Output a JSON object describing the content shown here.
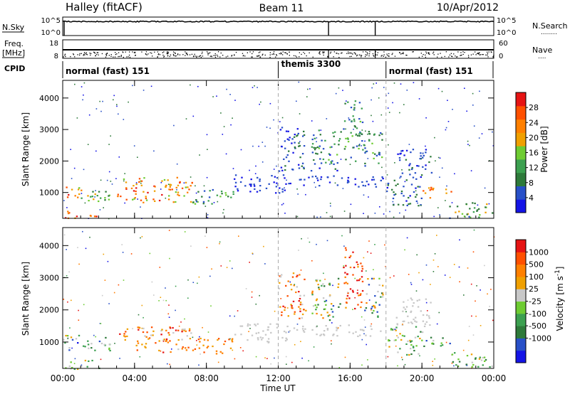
{
  "header": {
    "site": "Halley (fitACF)",
    "beam": "Beam 11",
    "date": "10/Apr/2012"
  },
  "left_labels": {
    "nsky": "N.Sky",
    "freq_top": "Freq.",
    "freq_bottom": "[MHz]",
    "cpid": "CPID"
  },
  "right_labels": {
    "nsearch": "N.Search",
    "nave": "Nave",
    "nsearch_legend": "........",
    "nave_legend": "...."
  },
  "strip_ticks": {
    "noise_left": [
      "10^5",
      "10^0"
    ],
    "noise_right": [
      "10^5",
      "10^0"
    ],
    "freq_left": [
      "18",
      "8"
    ],
    "nave_right": [
      "60",
      "0"
    ]
  },
  "cpid_segments": [
    {
      "label": "normal (fast) 151",
      "start_hour": 0
    },
    {
      "label": "themis 3300",
      "start_hour": 12
    },
    {
      "label": "normal (fast) 151",
      "start_hour": 18
    }
  ],
  "chart_data": [
    {
      "type": "heatmap",
      "parameter": "Power",
      "xlabel": "",
      "ylabel": "Slant Range [km]",
      "x_tick_labels": [
        "00:00",
        "04:00",
        "08:00",
        "12:00",
        "16:00",
        "20:00",
        "00:00"
      ],
      "x_ticks_hours": [
        0,
        4,
        8,
        12,
        16,
        20,
        24
      ],
      "xlim_hours": [
        0,
        24
      ],
      "y_ticks": [
        1000,
        2000,
        3000,
        4000
      ],
      "ylim": [
        180,
        4560
      ],
      "colorbar": {
        "label": "Power [dB]",
        "ticks": [
          "4",
          "8",
          "12",
          "16",
          "20",
          "24",
          "28"
        ],
        "range": [
          0,
          32
        ],
        "colors": [
          "#1414e6",
          "#2850c8",
          "#2e7a3a",
          "#3ca050",
          "#6ecc32",
          "#f0a000",
          "#ff8000",
          "#ff5000",
          "#e61414"
        ]
      },
      "dashed_lines_hours": [
        12,
        18
      ],
      "features": [
        {
          "t0": 0.0,
          "t1": 1.0,
          "r0": 780,
          "r1": 1240,
          "value": 22,
          "spread": 8
        },
        {
          "t0": 1.0,
          "t1": 2.6,
          "r0": 700,
          "r1": 1200,
          "value": 14,
          "spread": 7
        },
        {
          "t0": 3.0,
          "t1": 7.2,
          "r0": 700,
          "r1": 1500,
          "value": 22,
          "spread": 8
        },
        {
          "t0": 7.2,
          "t1": 9.5,
          "r0": 650,
          "r1": 1150,
          "value": 11,
          "spread": 5
        },
        {
          "t0": 9.5,
          "t1": 12.5,
          "r0": 1000,
          "r1": 1600,
          "value": 4,
          "spread": 3
        },
        {
          "t0": 12.5,
          "t1": 17.8,
          "r0": 1200,
          "r1": 1550,
          "value": 4,
          "spread": 3
        },
        {
          "t0": 12.0,
          "t1": 13.5,
          "r0": 1700,
          "r1": 3200,
          "value": 6,
          "spread": 4
        },
        {
          "t0": 13.8,
          "t1": 15.5,
          "r0": 1700,
          "r1": 3000,
          "value": 9,
          "spread": 6
        },
        {
          "t0": 15.6,
          "t1": 16.7,
          "r0": 2000,
          "r1": 4000,
          "value": 11,
          "spread": 6
        },
        {
          "t0": 16.7,
          "t1": 17.8,
          "r0": 1800,
          "r1": 3000,
          "value": 10,
          "spread": 5
        },
        {
          "t0": 18.0,
          "t1": 20.0,
          "r0": 600,
          "r1": 1500,
          "value": 7,
          "spread": 4
        },
        {
          "t0": 18.5,
          "t1": 20.5,
          "r0": 1500,
          "r1": 2400,
          "value": 5,
          "spread": 3
        },
        {
          "t0": 20.0,
          "t1": 21.6,
          "r0": 850,
          "r1": 1200,
          "value": 24,
          "spread": 6
        },
        {
          "t0": 21.5,
          "t1": 24.0,
          "r0": 200,
          "r1": 700,
          "value": 12,
          "spread": 8
        },
        {
          "t0": 0.0,
          "t1": 2.0,
          "r0": 180,
          "r1": 450,
          "value": 26,
          "spread": 5
        }
      ]
    },
    {
      "type": "heatmap",
      "parameter": "Velocity",
      "xlabel": "Time UT",
      "ylabel": "Slant Range [km]",
      "x_tick_labels": [
        "00:00",
        "04:00",
        "08:00",
        "12:00",
        "16:00",
        "20:00",
        "00:00"
      ],
      "x_ticks_hours": [
        0,
        4,
        8,
        12,
        16,
        20,
        24
      ],
      "xlim_hours": [
        0,
        24
      ],
      "y_ticks": [
        1000,
        2000,
        3000,
        4000
      ],
      "ylim": [
        180,
        4560
      ],
      "colorbar": {
        "label": "Velocity [m s^-1]",
        "ticks": [
          "1000",
          "500",
          "100",
          "25",
          "-25",
          "-100",
          "-500",
          "-1000"
        ],
        "colors": [
          "#1414e6",
          "#2850c8",
          "#2e7a3a",
          "#3ca050",
          "#6ecc32",
          "#c8c8c8",
          "#f0a000",
          "#ff8000",
          "#ff5000",
          "#e61414"
        ]
      },
      "dashed_lines_hours": [
        12,
        18
      ],
      "features": [
        {
          "t0": 0.0,
          "t1": 1.0,
          "r0": 700,
          "r1": 1240,
          "value": 3,
          "spread": 3
        },
        {
          "t0": 1.0,
          "t1": 2.6,
          "r0": 700,
          "r1": 1200,
          "value": 3,
          "spread": 2
        },
        {
          "t0": 3.0,
          "t1": 7.2,
          "r0": 700,
          "r1": 1500,
          "value": 7,
          "spread": 2
        },
        {
          "t0": 7.2,
          "t1": 9.5,
          "r0": 650,
          "r1": 1150,
          "value": 7,
          "spread": 1
        },
        {
          "t0": 9.5,
          "t1": 12.5,
          "r0": 1000,
          "r1": 1600,
          "value": 5,
          "spread": 0
        },
        {
          "t0": 12.5,
          "t1": 17.8,
          "r0": 1200,
          "r1": 1550,
          "value": 5,
          "spread": 0
        },
        {
          "t0": 12.0,
          "t1": 13.5,
          "r0": 1700,
          "r1": 3200,
          "value": 7,
          "spread": 2
        },
        {
          "t0": 13.8,
          "t1": 15.5,
          "r0": 1700,
          "r1": 3000,
          "value": 4,
          "spread": 3
        },
        {
          "t0": 15.6,
          "t1": 16.7,
          "r0": 2000,
          "r1": 4000,
          "value": 8,
          "spread": 2
        },
        {
          "t0": 16.7,
          "t1": 17.8,
          "r0": 1800,
          "r1": 3000,
          "value": 4,
          "spread": 3
        },
        {
          "t0": 18.0,
          "t1": 20.0,
          "r0": 600,
          "r1": 1500,
          "value": 4,
          "spread": 2
        },
        {
          "t0": 18.5,
          "t1": 20.5,
          "r0": 1500,
          "r1": 2400,
          "value": 5,
          "spread": 0
        },
        {
          "t0": 20.0,
          "t1": 21.6,
          "r0": 850,
          "r1": 1200,
          "value": 3,
          "spread": 2
        },
        {
          "t0": 21.5,
          "t1": 24.0,
          "r0": 200,
          "r1": 700,
          "value": 4,
          "spread": 2
        },
        {
          "t0": 0.0,
          "t1": 2.0,
          "r0": 180,
          "r1": 450,
          "value": 4,
          "spread": 2
        }
      ]
    }
  ]
}
